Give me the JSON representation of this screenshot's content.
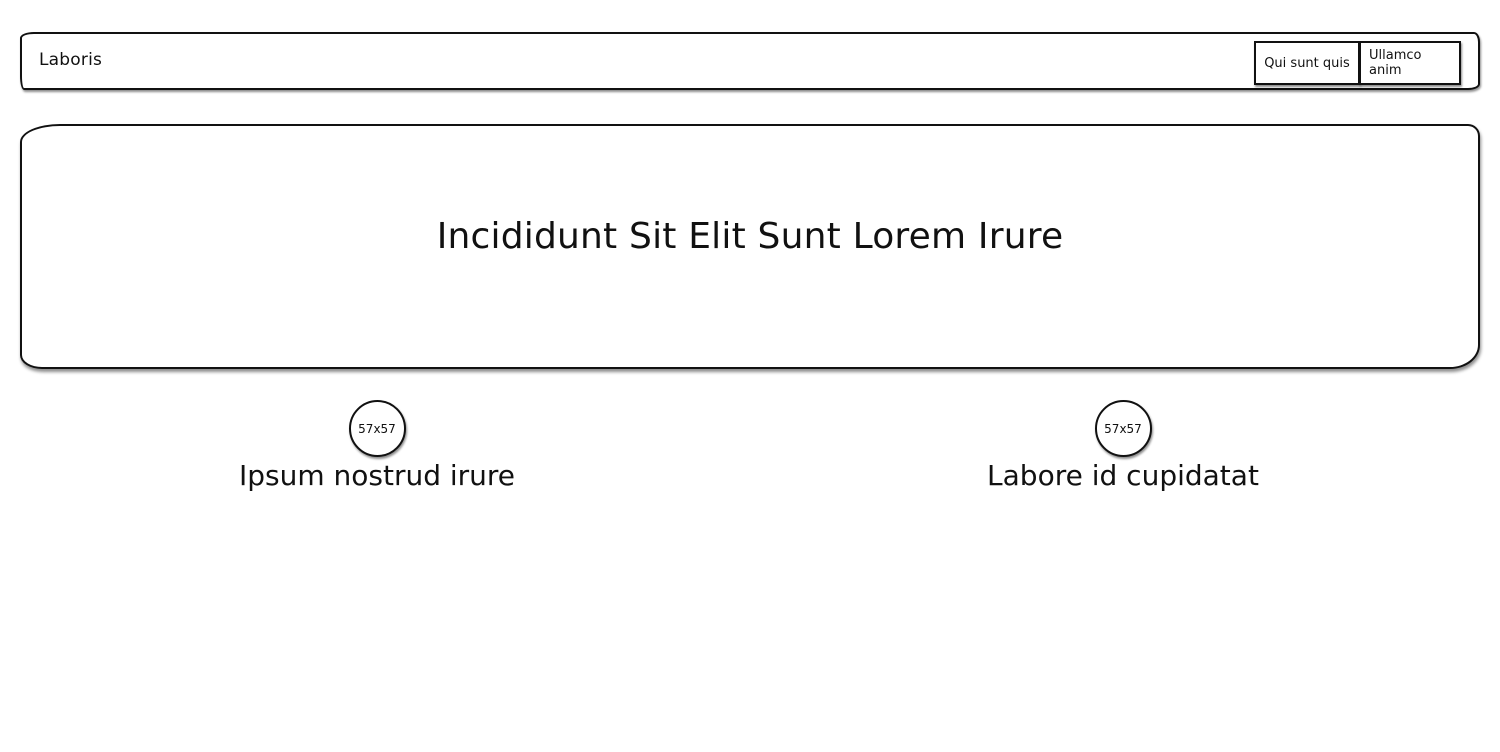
{
  "header": {
    "brand": "Laboris",
    "nav": [
      {
        "label": "Qui sunt quis"
      },
      {
        "label": "Ullamco anim"
      }
    ]
  },
  "hero": {
    "title": "Incididunt Sit Elit Sunt Lorem Irure"
  },
  "features": [
    {
      "image_label": "57x57",
      "label": "Ipsum nostrud irure"
    },
    {
      "image_label": "57x57",
      "label": "Labore id cupidatat"
    }
  ]
}
